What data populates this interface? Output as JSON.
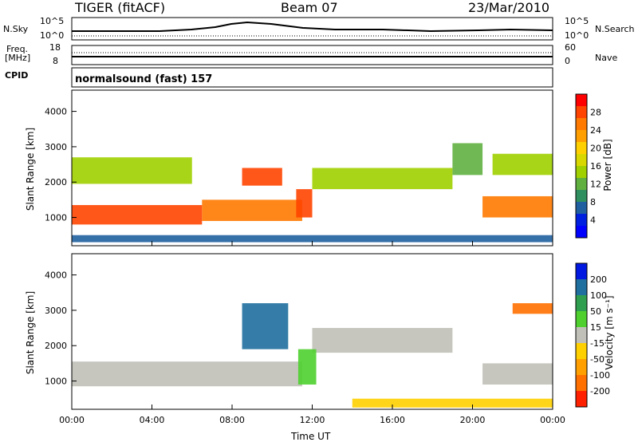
{
  "header": {
    "radar": "TIGER (fitACF)",
    "beam": "Beam 07",
    "date": "23/Mar/2010"
  },
  "top_panels": {
    "nsky_label": "N.Sky",
    "nsearch_label": "N.Search",
    "noise_ticks": [
      "10^5",
      "10^0"
    ],
    "noise_ticks_right": [
      "10^5",
      "10^0"
    ],
    "freq_label_1": "Freq.",
    "freq_label_2": "[MHz]",
    "freq_ticks": [
      "18",
      "8"
    ],
    "nave_label": "Nave",
    "nave_ticks": [
      "60",
      "0"
    ],
    "cpid_label": "CPID",
    "cpid_text": "normalsound (fast) 157"
  },
  "power_panel": {
    "ylabel": "Slant Range [km]",
    "yticks": [
      "4000",
      "3000",
      "2000",
      "1000"
    ],
    "cbar_label": "Power [dB]",
    "cbar_ticks": [
      "28",
      "24",
      "20",
      "16",
      "12",
      "8",
      "4"
    ],
    "cbar_colors": [
      "#ff0000",
      "#ff4400",
      "#ff7a00",
      "#ffa000",
      "#ffd000",
      "#d8d800",
      "#a0d000",
      "#60b040",
      "#2f8f5f",
      "#2060a0",
      "#0020e0",
      "#0000ff"
    ]
  },
  "velocity_panel": {
    "ylabel": "Slant Range [km]",
    "yticks": [
      "4000",
      "3000",
      "2000",
      "1000"
    ],
    "cbar_label": "Velocity [m s⁻¹]",
    "cbar_ticks": [
      "200",
      "100",
      "50",
      "15",
      "-15",
      "-50",
      "-100",
      "-200"
    ],
    "cbar_colors": [
      "#0018e0",
      "#1f6f9f",
      "#2f9f4f",
      "#4fd02f",
      "#c0c0b8",
      "#ffd000",
      "#ffa000",
      "#ff7000",
      "#ff2000"
    ]
  },
  "xaxis": {
    "ticks": [
      "00:00",
      "04:00",
      "08:00",
      "12:00",
      "16:00",
      "20:00",
      "00:00"
    ],
    "label": "Time UT"
  },
  "chart_data": {
    "type": "heatmap",
    "title": "TIGER (fitACF) Beam 07 23/Mar/2010",
    "xlabel": "Time UT",
    "ylabel": "Slant Range [km]",
    "xlim": [
      "00:00",
      "24:00"
    ],
    "ylim": [
      200,
      4600
    ],
    "panels": [
      {
        "name": "Power",
        "units": "dB",
        "range": [
          0,
          30
        ],
        "regions": [
          {
            "t_start": 0.0,
            "t_end": 6.5,
            "range_km": [
              800,
              1350
            ],
            "value": 28
          },
          {
            "t_start": 6.5,
            "t_end": 11.5,
            "range_km": [
              900,
              1500
            ],
            "value": 24
          },
          {
            "t_start": 8.5,
            "t_end": 10.5,
            "range_km": [
              1900,
              2400
            ],
            "value": 26
          },
          {
            "t_start": 11.2,
            "t_end": 12.0,
            "range_km": [
              1000,
              1800
            ],
            "value": 26
          },
          {
            "t_start": 0.0,
            "t_end": 6.0,
            "range_km": [
              1950,
              2700
            ],
            "value": 14
          },
          {
            "t_start": 12.0,
            "t_end": 19.0,
            "range_km": [
              1800,
              2400
            ],
            "value": 14
          },
          {
            "t_start": 19.0,
            "t_end": 20.5,
            "range_km": [
              2200,
              3100
            ],
            "value": 10
          },
          {
            "t_start": 20.5,
            "t_end": 24.0,
            "range_km": [
              1000,
              1600
            ],
            "value": 24
          },
          {
            "t_start": 21.0,
            "t_end": 24.0,
            "range_km": [
              2200,
              2800
            ],
            "value": 14
          },
          {
            "t_start": 0.0,
            "t_end": 24.0,
            "range_km": [
              300,
              500
            ],
            "value": 6
          }
        ]
      },
      {
        "name": "Velocity",
        "units": "m s-1",
        "range": [
          -200,
          200
        ],
        "regions": [
          {
            "t_start": 0.0,
            "t_end": 11.5,
            "range_km": [
              850,
              1550
            ],
            "value": 0
          },
          {
            "t_start": 12.0,
            "t_end": 19.0,
            "range_km": [
              1800,
              2500
            ],
            "value": 0
          },
          {
            "t_start": 8.5,
            "t_end": 10.8,
            "range_km": [
              1900,
              3200
            ],
            "value": 150
          },
          {
            "t_start": 11.3,
            "t_end": 12.2,
            "range_km": [
              900,
              1900
            ],
            "value": 40
          },
          {
            "t_start": 20.5,
            "t_end": 24.0,
            "range_km": [
              900,
              1500
            ],
            "value": 0
          },
          {
            "t_start": 22.0,
            "t_end": 24.0,
            "range_km": [
              2900,
              3200
            ],
            "value": -150
          },
          {
            "t_start": 14.0,
            "t_end": 24.0,
            "range_km": [
              250,
              500
            ],
            "value": -40
          }
        ]
      }
    ]
  }
}
